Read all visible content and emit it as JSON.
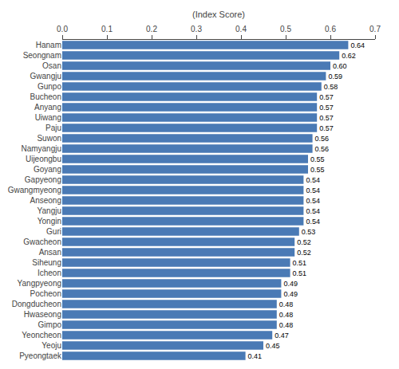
{
  "chart_data": {
    "type": "bar",
    "orientation": "horizontal",
    "xlabel": "(Index Score)",
    "categories": [
      "Hanam",
      "Seongnam",
      "Osan",
      "Gwangju",
      "Gunpo",
      "Bucheon",
      "Anyang",
      "Uiwang",
      "Paju",
      "Suwon",
      "Namyangju",
      "Uijeongbu",
      "Goyang",
      "Gapyeong",
      "Gwangmyeong",
      "Anseong",
      "Yangju",
      "Yongin",
      "Guri",
      "Gwacheon",
      "Ansan",
      "Siheung",
      "Icheon",
      "Yangpyeong",
      "Pocheon",
      "Dongducheon",
      "Hwaseong",
      "Gimpo",
      "Yeoncheon",
      "Yeoju",
      "Pyeongtaek"
    ],
    "values": [
      0.64,
      0.62,
      0.6,
      0.59,
      0.58,
      0.57,
      0.57,
      0.57,
      0.57,
      0.56,
      0.56,
      0.55,
      0.55,
      0.54,
      0.54,
      0.54,
      0.54,
      0.54,
      0.53,
      0.52,
      0.52,
      0.51,
      0.51,
      0.49,
      0.49,
      0.48,
      0.48,
      0.48,
      0.47,
      0.45,
      0.41
    ],
    "value_labels": [
      "0.64",
      "0.62",
      "0.60",
      "0.59",
      "0.58",
      "0.57",
      "0.57",
      "0.57",
      "0.57",
      "0.56",
      "0.56",
      "0.55",
      "0.55",
      "0.54",
      "0.54",
      "0.54",
      "0.54",
      "0.54",
      "0.53",
      "0.52",
      "0.52",
      "0.51",
      "0.51",
      "0.49",
      "0.49",
      "0.48",
      "0.48",
      "0.48",
      "0.47",
      "0.45",
      "0.41"
    ],
    "color": "#4a7ab5",
    "data_labels": true,
    "xlim": [
      0.0,
      0.7
    ],
    "xticks": [
      {
        "value": 0.0,
        "label": "0.0"
      },
      0.1,
      0.2,
      0.3,
      0.4,
      0.5,
      0.6,
      0.7
    ],
    "grid": false
  }
}
